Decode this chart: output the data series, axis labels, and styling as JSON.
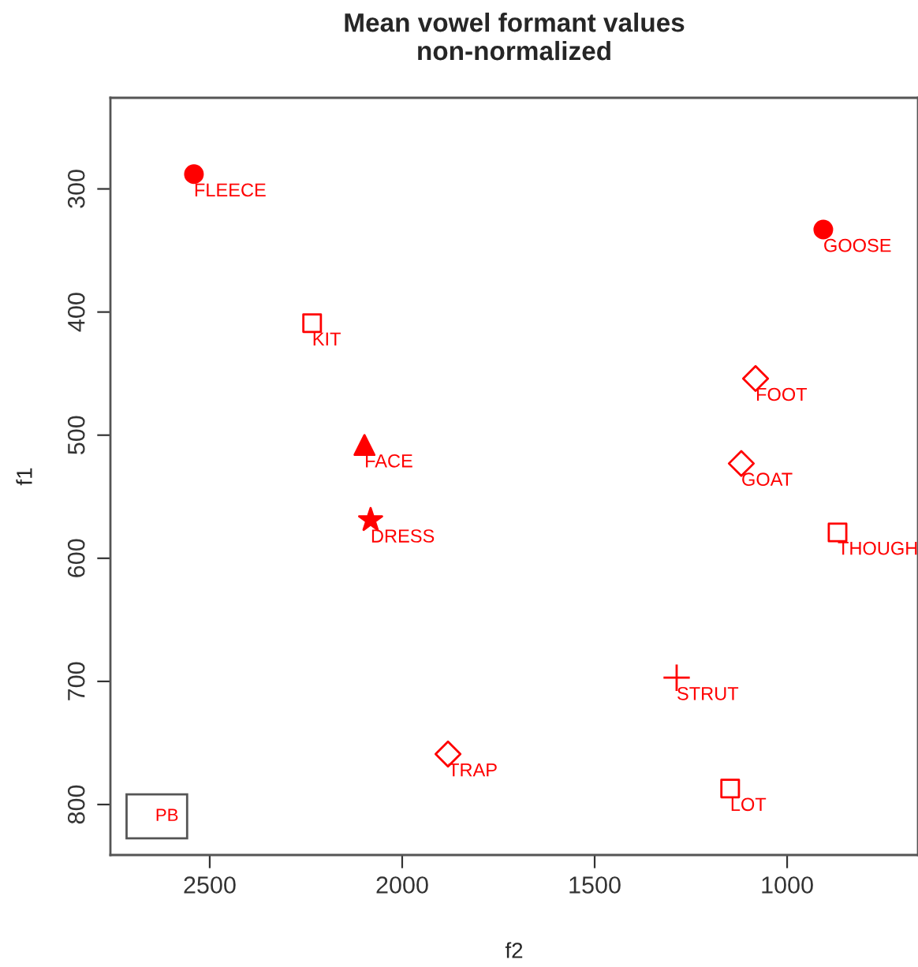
{
  "chart_data": {
    "type": "scatter",
    "title": "Mean vowel formant values",
    "subtitle": "non-normalized",
    "xlabel": "f2",
    "ylabel": "f1",
    "xlim": [
      2758,
      660
    ],
    "ylim": [
      841,
      226
    ],
    "xticks": [
      2500,
      2000,
      1500,
      1000
    ],
    "yticks": [
      300,
      400,
      500,
      600,
      700,
      800
    ],
    "grid": false,
    "series": [
      {
        "color": "#ff0000",
        "marker": "circle",
        "x": [
          2541
        ],
        "values": [
          288
        ]
      },
      {
        "color": "#ff0000",
        "marker": "square",
        "x": [
          2234
        ],
        "values": [
          409
        ]
      },
      {
        "color": "#ff0000",
        "marker": "triangle",
        "x": [
          2098
        ],
        "values": [
          508
        ]
      },
      {
        "color": "#ff0000",
        "marker": "star",
        "x": [
          2082
        ],
        "values": [
          569
        ]
      },
      {
        "color": "#ff0000",
        "marker": "diamond",
        "x": [
          1881
        ],
        "values": [
          759
        ]
      },
      {
        "color": "#ff0000",
        "marker": "circle",
        "x": [
          906
        ],
        "values": [
          333
        ]
      },
      {
        "color": "#ff0000",
        "marker": "diamond",
        "x": [
          1082
        ],
        "values": [
          454
        ]
      },
      {
        "color": "#ff0000",
        "marker": "diamond",
        "x": [
          1119
        ],
        "values": [
          523
        ]
      },
      {
        "color": "#ff0000",
        "marker": "square",
        "x": [
          869
        ],
        "values": [
          579
        ]
      },
      {
        "color": "#ff0000",
        "marker": "cross",
        "x": [
          1287
        ],
        "values": [
          697
        ]
      },
      {
        "color": "#ff0000",
        "marker": "square",
        "x": [
          1148
        ],
        "values": [
          787
        ]
      }
    ],
    "annotations": [
      {
        "text": "FLEECE",
        "x": 2541,
        "y": 288
      },
      {
        "text": "KIT",
        "x": 2234,
        "y": 409
      },
      {
        "text": "FACE",
        "x": 2098,
        "y": 508
      },
      {
        "text": "DRESS",
        "x": 2082,
        "y": 569
      },
      {
        "text": "TRAP",
        "x": 1881,
        "y": 759
      },
      {
        "text": "GOOSE",
        "x": 906,
        "y": 333
      },
      {
        "text": "FOOT",
        "x": 1082,
        "y": 454
      },
      {
        "text": "GOAT",
        "x": 1119,
        "y": 523
      },
      {
        "text": "THOUGH",
        "x": 869,
        "y": 579
      },
      {
        "text": "STRUT",
        "x": 1287,
        "y": 697
      },
      {
        "text": "LOT",
        "x": 1148,
        "y": 787
      },
      "PB"
    ]
  }
}
